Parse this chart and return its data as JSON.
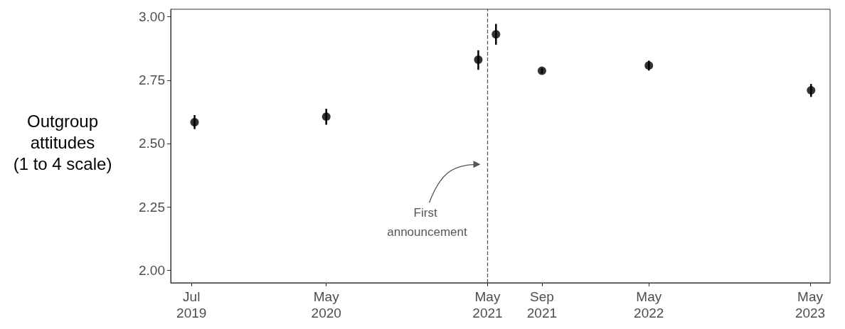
{
  "chart_data": {
    "type": "scatter",
    "ylabel": "Outgroup attitudes (1 to 4 scale)",
    "x": [
      "2019-07-08",
      "2020-05-01",
      "2021-04-10",
      "2021-05-20",
      "2021-09-01",
      "2022-05-01",
      "2023-05-03"
    ],
    "series": [
      {
        "color": "#000000",
        "values": [
          2.584,
          2.606,
          2.831,
          2.931,
          2.787,
          2.808,
          2.71
        ],
        "errors": [
          [
            2.557,
            2.612
          ],
          [
            2.574,
            2.637
          ],
          [
            2.791,
            2.868
          ],
          [
            2.89,
            2.972
          ],
          [
            2.777,
            2.797
          ],
          [
            2.788,
            2.827
          ],
          [
            2.684,
            2.735
          ]
        ]
      }
    ],
    "marker": "circle",
    "grid": false,
    "xlim": [
      "2019-05-15",
      "2023-06-15"
    ],
    "xticks": [
      {
        "value": "2019-07-01",
        "label": "Jul 2019"
      },
      {
        "value": "2020-05-01",
        "label": "May 2020"
      },
      {
        "value": "2021-05-01",
        "label": "May 2021"
      },
      {
        "value": "2021-09-01",
        "label": "Sep 2021"
      },
      {
        "value": "2022-05-01",
        "label": "May 2022"
      },
      {
        "value": "2023-05-01",
        "label": "May 2023"
      }
    ],
    "ylim": [
      1.95,
      3.03
    ],
    "yticks": [
      {
        "value": 2,
        "label": "2.00"
      },
      {
        "value": 2.25,
        "label": "2.25"
      },
      {
        "value": 2.5,
        "label": "2.50"
      },
      {
        "value": 2.75,
        "label": "2.75"
      },
      {
        "value": 3,
        "label": "3.00"
      }
    ],
    "ref_lines": [
      {
        "axis": "x",
        "value": "2021-05-01",
        "color": "#555555",
        "line_style": "dashed"
      }
    ],
    "annotations": [
      "First announcement"
    ]
  }
}
